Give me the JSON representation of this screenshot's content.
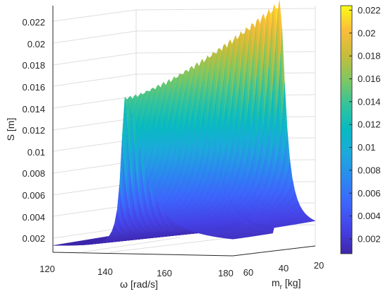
{
  "chart_data": {
    "type": "surface",
    "title": "",
    "xlabel": "ω [rad/s]",
    "ylabel_main": "m",
    "ylabel_sub": "r",
    "ylabel_unit": " [kg]",
    "zlabel": "S [m]",
    "xlim": [
      120,
      180
    ],
    "ylim": [
      20,
      60
    ],
    "zlim": [
      0,
      0.0225
    ],
    "x_ticks": [
      "120",
      "140",
      "160",
      "180"
    ],
    "y_ticks": [
      "60",
      "40",
      "20"
    ],
    "z_ticks": [
      "0.002",
      "0.004",
      "0.006",
      "0.008",
      "0.01",
      "0.012",
      "0.014",
      "0.016",
      "0.018",
      "0.02",
      "0.022"
    ],
    "colorbar_ticks": [
      "0.002",
      "0.004",
      "0.006",
      "0.008",
      "0.01",
      "0.012",
      "0.014",
      "0.016",
      "0.018",
      "0.02",
      "0.022"
    ],
    "colorbar_range": [
      0.0007,
      0.0224
    ],
    "colormap": "parula",
    "grid": true,
    "description_points": [
      {
        "m_r": 60,
        "omega": 144,
        "S": 0.0144
      },
      {
        "m_r": 20,
        "omega": 168,
        "S": 0.0224
      },
      {
        "m_r": 60,
        "omega": 120,
        "S": 0.0008
      },
      {
        "m_r": 20,
        "omega": 120,
        "S": 0.0007
      },
      {
        "m_r": 60,
        "omega": 180,
        "S": 0.0012
      },
      {
        "m_r": 20,
        "omega": 180,
        "S": 0.0017
      }
    ]
  }
}
